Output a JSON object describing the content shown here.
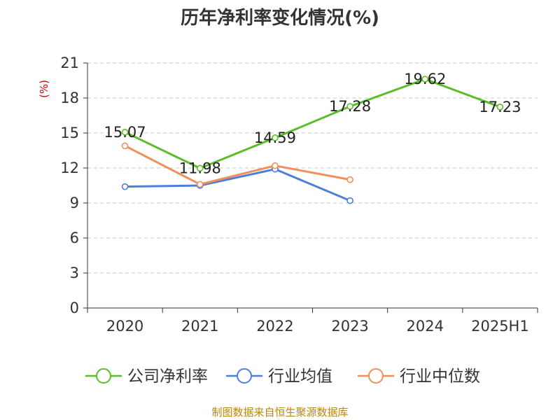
{
  "chart_data": {
    "type": "line",
    "title": "历年净利率变化情况(%)",
    "ylabel": "(%)",
    "xlabel": "",
    "ylim": [
      0,
      21
    ],
    "yticks": [
      0,
      3,
      6,
      9,
      12,
      15,
      18,
      21
    ],
    "categories": [
      "2020",
      "2021",
      "2022",
      "2023",
      "2024",
      "2025H1"
    ],
    "grid": true,
    "legend_position": "bottom",
    "series": [
      {
        "name": "公司净利率",
        "color": "#5cbd2a",
        "values": [
          15.07,
          11.98,
          14.59,
          17.28,
          19.62,
          17.23
        ],
        "labels": [
          "15.07",
          "11.98",
          "14.59",
          "17.28",
          "19.62",
          "17.23"
        ]
      },
      {
        "name": "行业均值",
        "color": "#4e7fd9",
        "values": [
          10.4,
          10.5,
          11.9,
          9.2,
          null,
          null
        ]
      },
      {
        "name": "行业中位数",
        "color": "#f28e5c",
        "values": [
          13.9,
          10.6,
          12.2,
          11.0,
          null,
          null
        ]
      }
    ]
  },
  "source_text": "制图数据来自恒生聚源数据库"
}
